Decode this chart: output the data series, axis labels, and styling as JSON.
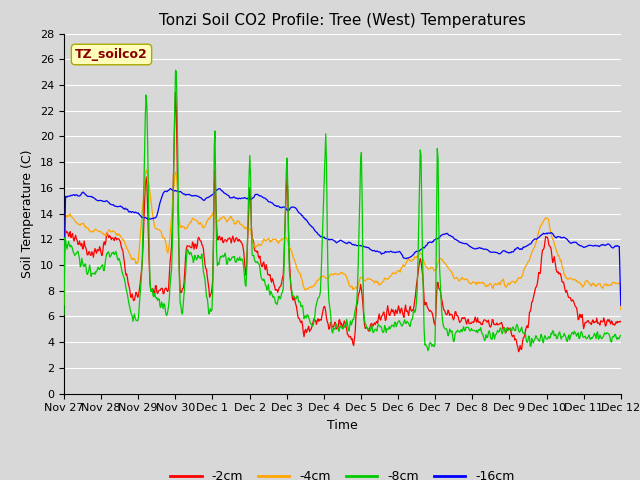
{
  "title": "Tonzi Soil CO2 Profile: Tree (West) Temperatures",
  "xlabel": "Time",
  "ylabel": "Soil Temperature (C)",
  "legend_label": "TZ_soilco2",
  "legend_entries": [
    "-2cm",
    "-4cm",
    "-8cm",
    "-16cm"
  ],
  "colors": [
    "#ff0000",
    "#ffa500",
    "#00cc00",
    "#0000ff"
  ],
  "ylim": [
    0,
    28
  ],
  "xtick_labels": [
    "Nov 27",
    "Nov 28",
    "Nov 29",
    "Nov 30",
    "Dec 1",
    "Dec 2",
    "Dec 3",
    "Dec 4",
    "Dec 5",
    "Dec 6",
    "Dec 7",
    "Dec 8",
    "Dec 9",
    "Dec 10",
    "Dec 11",
    "Dec 12"
  ],
  "ytick_values": [
    0,
    2,
    4,
    6,
    8,
    10,
    12,
    14,
    16,
    18,
    20,
    22,
    24,
    26,
    28
  ],
  "bg_color": "#d8d8d8",
  "plot_bg_color": "#d8d8d8",
  "grid_color": "#ffffff",
  "title_fontsize": 11,
  "axis_fontsize": 9,
  "tick_fontsize": 8,
  "legend_box_facecolor": "#ffffbb",
  "legend_box_edgecolor": "#aaaa00",
  "legend_text_color": "#880000"
}
